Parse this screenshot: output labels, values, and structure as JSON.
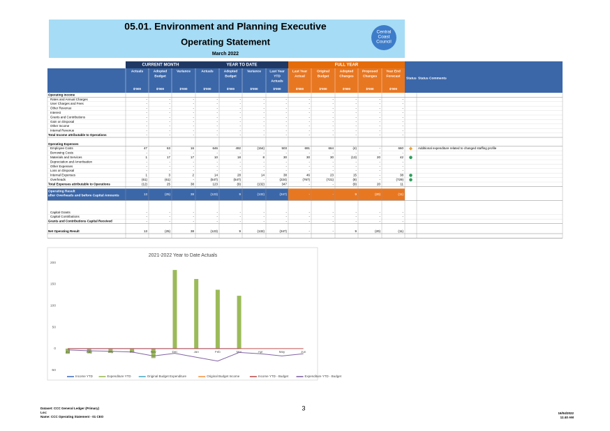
{
  "header": {
    "title": "05.01.  Environment and Planning Executive",
    "subtitle": "Operating Statement",
    "period": "March 2022",
    "logo": [
      "Central",
      "Coast",
      "Council"
    ]
  },
  "table": {
    "groups": [
      {
        "label": "CURRENT MONTH",
        "span": 3,
        "color": "#1f3864"
      },
      {
        "label": "YEAR TO DATE",
        "span": 4,
        "color": "#1f3864"
      },
      {
        "label": "FULL YEAR",
        "span": 5,
        "color": "#e46c0a"
      }
    ],
    "columns": [
      [
        "Actuals"
      ],
      [
        "Adopted",
        "Budget"
      ],
      [
        "Variance"
      ],
      [
        "Actuals"
      ],
      [
        "Adopted",
        "Budget"
      ],
      [
        "Variance"
      ],
      [
        "Last Year",
        "YTD",
        "Actuals"
      ],
      [
        "Last Year",
        "Actual"
      ],
      [
        "Original",
        "Budget"
      ],
      [
        "Adopted",
        "Changes"
      ],
      [
        "Proposed",
        "Changes"
      ],
      [
        "Year End",
        "Forecast"
      ]
    ],
    "units": [
      "$'000",
      "$'000",
      "$'000",
      "$'000",
      "$'000",
      "$'000",
      "$'000",
      "$'000",
      "$'000",
      "$'000",
      "$'000",
      "$'000"
    ],
    "status_header": "Status",
    "comments_header": "Status Comments",
    "rows": [
      {
        "label": "Operating Income",
        "bold": true
      },
      {
        "label": "Rates and Annual Charges",
        "cells": [
          "-",
          "-",
          "-",
          "-",
          "-",
          "-",
          "-",
          "-",
          "-",
          "-",
          "-",
          "-"
        ]
      },
      {
        "label": "User Charges and Fees",
        "cells": [
          "-",
          "-",
          "-",
          "-",
          "-",
          "-",
          "-",
          "-",
          "-",
          "-",
          "-",
          "-"
        ]
      },
      {
        "label": "Other Revenue",
        "cells": [
          "-",
          "-",
          "-",
          "-",
          "-",
          "-",
          "-",
          "-",
          "-",
          "-",
          "-",
          "-"
        ]
      },
      {
        "label": "Interest",
        "cells": [
          "-",
          "-",
          "-",
          "-",
          "-",
          "-",
          "-",
          "-",
          "-",
          "-",
          "-",
          "-"
        ]
      },
      {
        "label": "Grants and Contributions",
        "cells": [
          "-",
          "-",
          "-",
          "-",
          "-",
          "-",
          "-",
          "-",
          "-",
          "-",
          "-",
          "-"
        ]
      },
      {
        "label": "Gain on Disposal",
        "cells": [
          "-",
          "-",
          "-",
          "-",
          "-",
          "-",
          "-",
          "-",
          "-",
          "-",
          "-",
          "-"
        ]
      },
      {
        "label": "Other Income",
        "cells": [
          "-",
          "-",
          "-",
          "-",
          "-",
          "-",
          "-",
          "-",
          "-",
          "-",
          "-",
          "-"
        ]
      },
      {
        "label": "Internal Revenue",
        "cells": [
          "-",
          "-",
          "-",
          "-",
          "-",
          "-",
          "-",
          "-",
          "-",
          "-",
          "-",
          "-"
        ]
      },
      {
        "label": "Total Income attributable to Operations",
        "bold": true,
        "cells": [
          "-",
          "-",
          "-",
          "-",
          "-",
          "-",
          "-",
          "-",
          "-",
          "-",
          "-",
          "-"
        ]
      },
      {
        "label": "Operating Expenses",
        "bold": true
      },
      {
        "label": "Employee Costs",
        "cells": [
          "47",
          "63",
          "16",
          "646",
          "492",
          "(154)",
          "503",
          "691",
          "664",
          "(4)",
          "-",
          "660"
        ],
        "status": "#f0a030",
        "comment": "Additional expenditure related to changed staffing profile"
      },
      {
        "label": "Borrowing Costs",
        "cells": [
          "-",
          "-",
          "-",
          "-",
          "-",
          "-",
          "-",
          "-",
          "-",
          "-",
          "-",
          "-"
        ]
      },
      {
        "label": "Materials and Services",
        "cells": [
          "1",
          "17",
          "17",
          "10",
          "18",
          "8",
          "30",
          "30",
          "30",
          "(13)",
          "20",
          "42"
        ],
        "status": "#2e9e5b"
      },
      {
        "label": "Depreciation and Amortisation",
        "cells": [
          "-",
          "-",
          "-",
          "-",
          "-",
          "-",
          "-",
          "-",
          "-",
          "-",
          "-",
          "-"
        ]
      },
      {
        "label": "Other Expenses",
        "cells": [
          "-",
          "-",
          "-",
          "-",
          "-",
          "-",
          "-",
          "-",
          "-",
          "-",
          "-",
          "-"
        ]
      },
      {
        "label": "Loss on Disposal",
        "cells": [
          "-",
          "-",
          "-",
          "-",
          "-",
          "-",
          "-",
          "-",
          "-",
          "-",
          "-",
          "-"
        ]
      },
      {
        "label": "Internal Expenses",
        "cells": [
          "1",
          "3",
          "2",
          "14",
          "28",
          "14",
          "38",
          "46",
          "23",
          "15",
          "-",
          "38"
        ],
        "status": "#2e9e5b"
      },
      {
        "label": "Overheads",
        "cells": [
          "(61)",
          "(61)",
          "-",
          "(547)",
          "(547)",
          "-",
          "(224)",
          "(767)",
          "(721)",
          "(8)",
          "-",
          "(729)"
        ],
        "status": "#2e9e5b"
      },
      {
        "label": "Total Expenses attributable to Operations",
        "bold": true,
        "cells": [
          "(12)",
          "25",
          "38",
          "123",
          "(9)",
          "(132)",
          "347",
          "-",
          "-",
          "(9)",
          "20",
          "11"
        ]
      },
      {
        "label": "Operating Result",
        "label2": "after Overheads and before Capital Amounts",
        "bold": true,
        "highlight": true,
        "cells": [
          "13",
          "(25)",
          "38",
          "(123)",
          "9",
          "(132)",
          "(347)",
          "-",
          "-",
          "9",
          "(20)",
          "(11)"
        ]
      },
      {
        "label": "Capital Grants",
        "cells": [
          "-",
          "-",
          "-",
          "-",
          "-",
          "-",
          "-",
          "-",
          "-",
          "-",
          "-",
          "-"
        ]
      },
      {
        "label": "Capital Contributions",
        "cells": [
          "-",
          "-",
          "-",
          "-",
          "-",
          "-",
          "-",
          "-",
          "-",
          "-",
          "-",
          "-"
        ]
      },
      {
        "label": "Grants and Contributions Capital Received",
        "bold": true,
        "cells": [
          "-",
          "-",
          "-",
          "-",
          "-",
          "-",
          "-",
          "-",
          "-",
          "-",
          "-",
          "-"
        ]
      },
      {
        "label": "Net Operating Result",
        "bold": true,
        "cells": [
          "13",
          "(25)",
          "38",
          "(123)",
          "9",
          "(132)",
          "(347)",
          "-",
          "-",
          "9",
          "(20)",
          "(11)"
        ]
      }
    ]
  },
  "chart_data": {
    "type": "bar",
    "title": "2021-2022 Year to Date Actuals",
    "categories": [
      "Jul",
      "Aug",
      "Sep",
      "Oct",
      "Nov",
      "Dec",
      "Jan",
      "Feb",
      "Mar",
      "Apr",
      "May",
      "Jun"
    ],
    "ylim": [
      -57,
      227
    ],
    "yticks": [
      -50,
      0,
      50,
      100,
      150,
      200
    ],
    "grid": false,
    "legend": "bottom",
    "series": [
      {
        "name": "Income YTD",
        "type": "line",
        "color": "#4472c4",
        "values": [
          0,
          0,
          0,
          0,
          0,
          0,
          0,
          0,
          0,
          null,
          null,
          null
        ]
      },
      {
        "name": "Expenditure YTD",
        "type": "bar",
        "color": "#9bbb59",
        "values": [
          -12,
          -11,
          -9,
          -7,
          -22,
          183,
          162,
          137,
          123,
          null,
          null,
          null
        ]
      },
      {
        "name": "Original Budget Expenditure",
        "type": "line",
        "color": "#4bacc6",
        "values": [
          null,
          null,
          null,
          null,
          null,
          null,
          null,
          null,
          null,
          null,
          null,
          null
        ]
      },
      {
        "name": "Original Budget Income",
        "type": "line",
        "color": "#f79646",
        "values": [
          null,
          null,
          null,
          null,
          null,
          null,
          null,
          null,
          null,
          null,
          null,
          null
        ]
      },
      {
        "name": "Income YTD - Budget",
        "type": "line",
        "color": "#c0504d",
        "values": [
          0,
          0,
          0,
          0,
          0,
          0,
          0,
          0,
          0,
          0,
          0,
          0
        ]
      },
      {
        "name": "Expenditure YTD - Budget",
        "type": "line",
        "color": "#8064a2",
        "values": [
          -3,
          -5,
          -6,
          -8,
          -17,
          -11,
          -20,
          -29,
          -9,
          -12,
          -17,
          -12
        ]
      }
    ]
  },
  "footer": {
    "lines": [
      "Dataset: CCC General Ledger (Primary)",
      "Loc:",
      "Name: CCC Operating Statement - 01 CEO"
    ],
    "page": "3",
    "date": "16/04/2022",
    "time": "11:40 AM"
  }
}
